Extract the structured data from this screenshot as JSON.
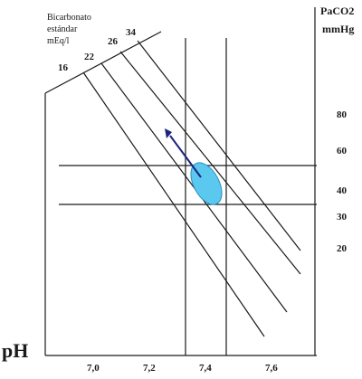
{
  "diagram": {
    "bicarbonate_axis": {
      "label_lines": [
        "Bicarbonato",
        "estándar",
        "mEq/l"
      ],
      "values": [
        "16",
        "22",
        "26",
        "34"
      ]
    },
    "paco2_axis": {
      "title_lines": [
        "PaCO2",
        "mmHg"
      ],
      "values": [
        "80",
        "60",
        "40",
        "30",
        "20"
      ]
    },
    "ph_axis": {
      "title": "pH",
      "values": [
        "7,0",
        "7,2",
        "7,4",
        "7,6"
      ]
    },
    "colors": {
      "lines": "#1a1a1a",
      "ellipse_fill": "#5bc8ef",
      "ellipse_stroke": "#2a8fbf",
      "arrow": "#1a237e"
    }
  }
}
